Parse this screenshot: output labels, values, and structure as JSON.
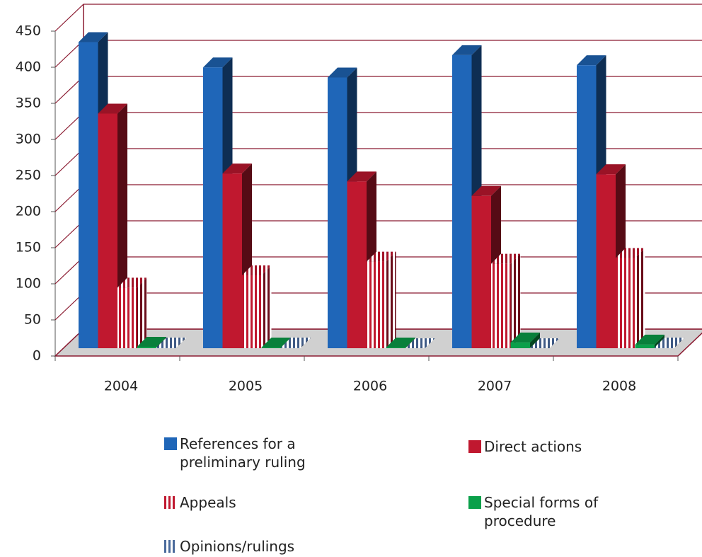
{
  "chart_data": {
    "type": "bar3d",
    "categories": [
      "2004",
      "2005",
      "2006",
      "2007",
      "2008"
    ],
    "series": [
      {
        "name": "References for a preliminary ruling",
        "color": "#1f66b8",
        "values": [
          424,
          389,
          375,
          406,
          392
        ]
      },
      {
        "name": "Direct actions",
        "color": "#c0182f",
        "values": [
          325,
          242,
          231,
          211,
          241
        ]
      },
      {
        "name": "Appeals",
        "color": "#c0182f",
        "pattern": "vertical-stripes",
        "values": [
          84,
          101,
          120,
          117,
          125
        ]
      },
      {
        "name": "Special forms of procedure",
        "color": "#0aa04a",
        "values": [
          2,
          1,
          1,
          8,
          5
        ]
      },
      {
        "name": "Opinions/rulings",
        "color": "#4a6a9c",
        "pattern": "vertical-stripes",
        "values": [
          1,
          1,
          0,
          0,
          1
        ]
      }
    ],
    "ylim": [
      0,
      450
    ],
    "yticks": [
      0,
      50,
      100,
      150,
      200,
      250,
      300,
      350,
      400,
      450
    ],
    "grid": true
  }
}
